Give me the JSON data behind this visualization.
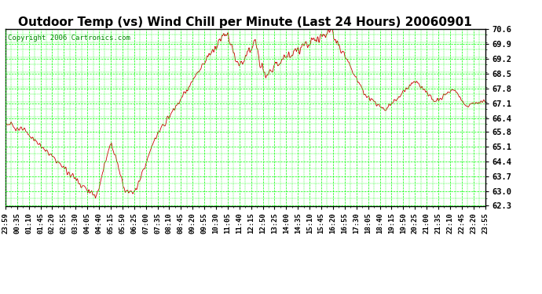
{
  "title": "Outdoor Temp (vs) Wind Chill per Minute (Last 24 Hours) 20060901",
  "copyright": "Copyright 2006 Cartronics.com",
  "background_color": "#ffffff",
  "plot_bg_color": "#ffffff",
  "grid_color": "#00ff00",
  "line_color": "#cc0000",
  "text_color": "#000000",
  "copyright_color": "#008800",
  "ylim": [
    62.3,
    70.6
  ],
  "yticks": [
    62.3,
    63.0,
    63.7,
    64.4,
    65.1,
    65.8,
    66.4,
    67.1,
    67.8,
    68.5,
    69.2,
    69.9,
    70.6
  ],
  "xtick_labels": [
    "23:59",
    "00:35",
    "01:10",
    "01:45",
    "02:20",
    "02:55",
    "03:30",
    "04:05",
    "04:40",
    "05:15",
    "05:50",
    "06:25",
    "07:00",
    "07:35",
    "08:10",
    "08:45",
    "09:20",
    "09:55",
    "10:30",
    "11:05",
    "11:40",
    "12:15",
    "12:50",
    "13:25",
    "14:00",
    "14:35",
    "15:10",
    "15:45",
    "16:20",
    "16:55",
    "17:30",
    "18:05",
    "18:40",
    "19:15",
    "19:50",
    "20:25",
    "21:00",
    "21:35",
    "22:10",
    "22:45",
    "23:20",
    "23:55"
  ],
  "title_fontsize": 11,
  "copyright_fontsize": 6.5,
  "tick_fontsize": 6.5,
  "ytick_fontsize": 7.5,
  "n_points": 1440
}
